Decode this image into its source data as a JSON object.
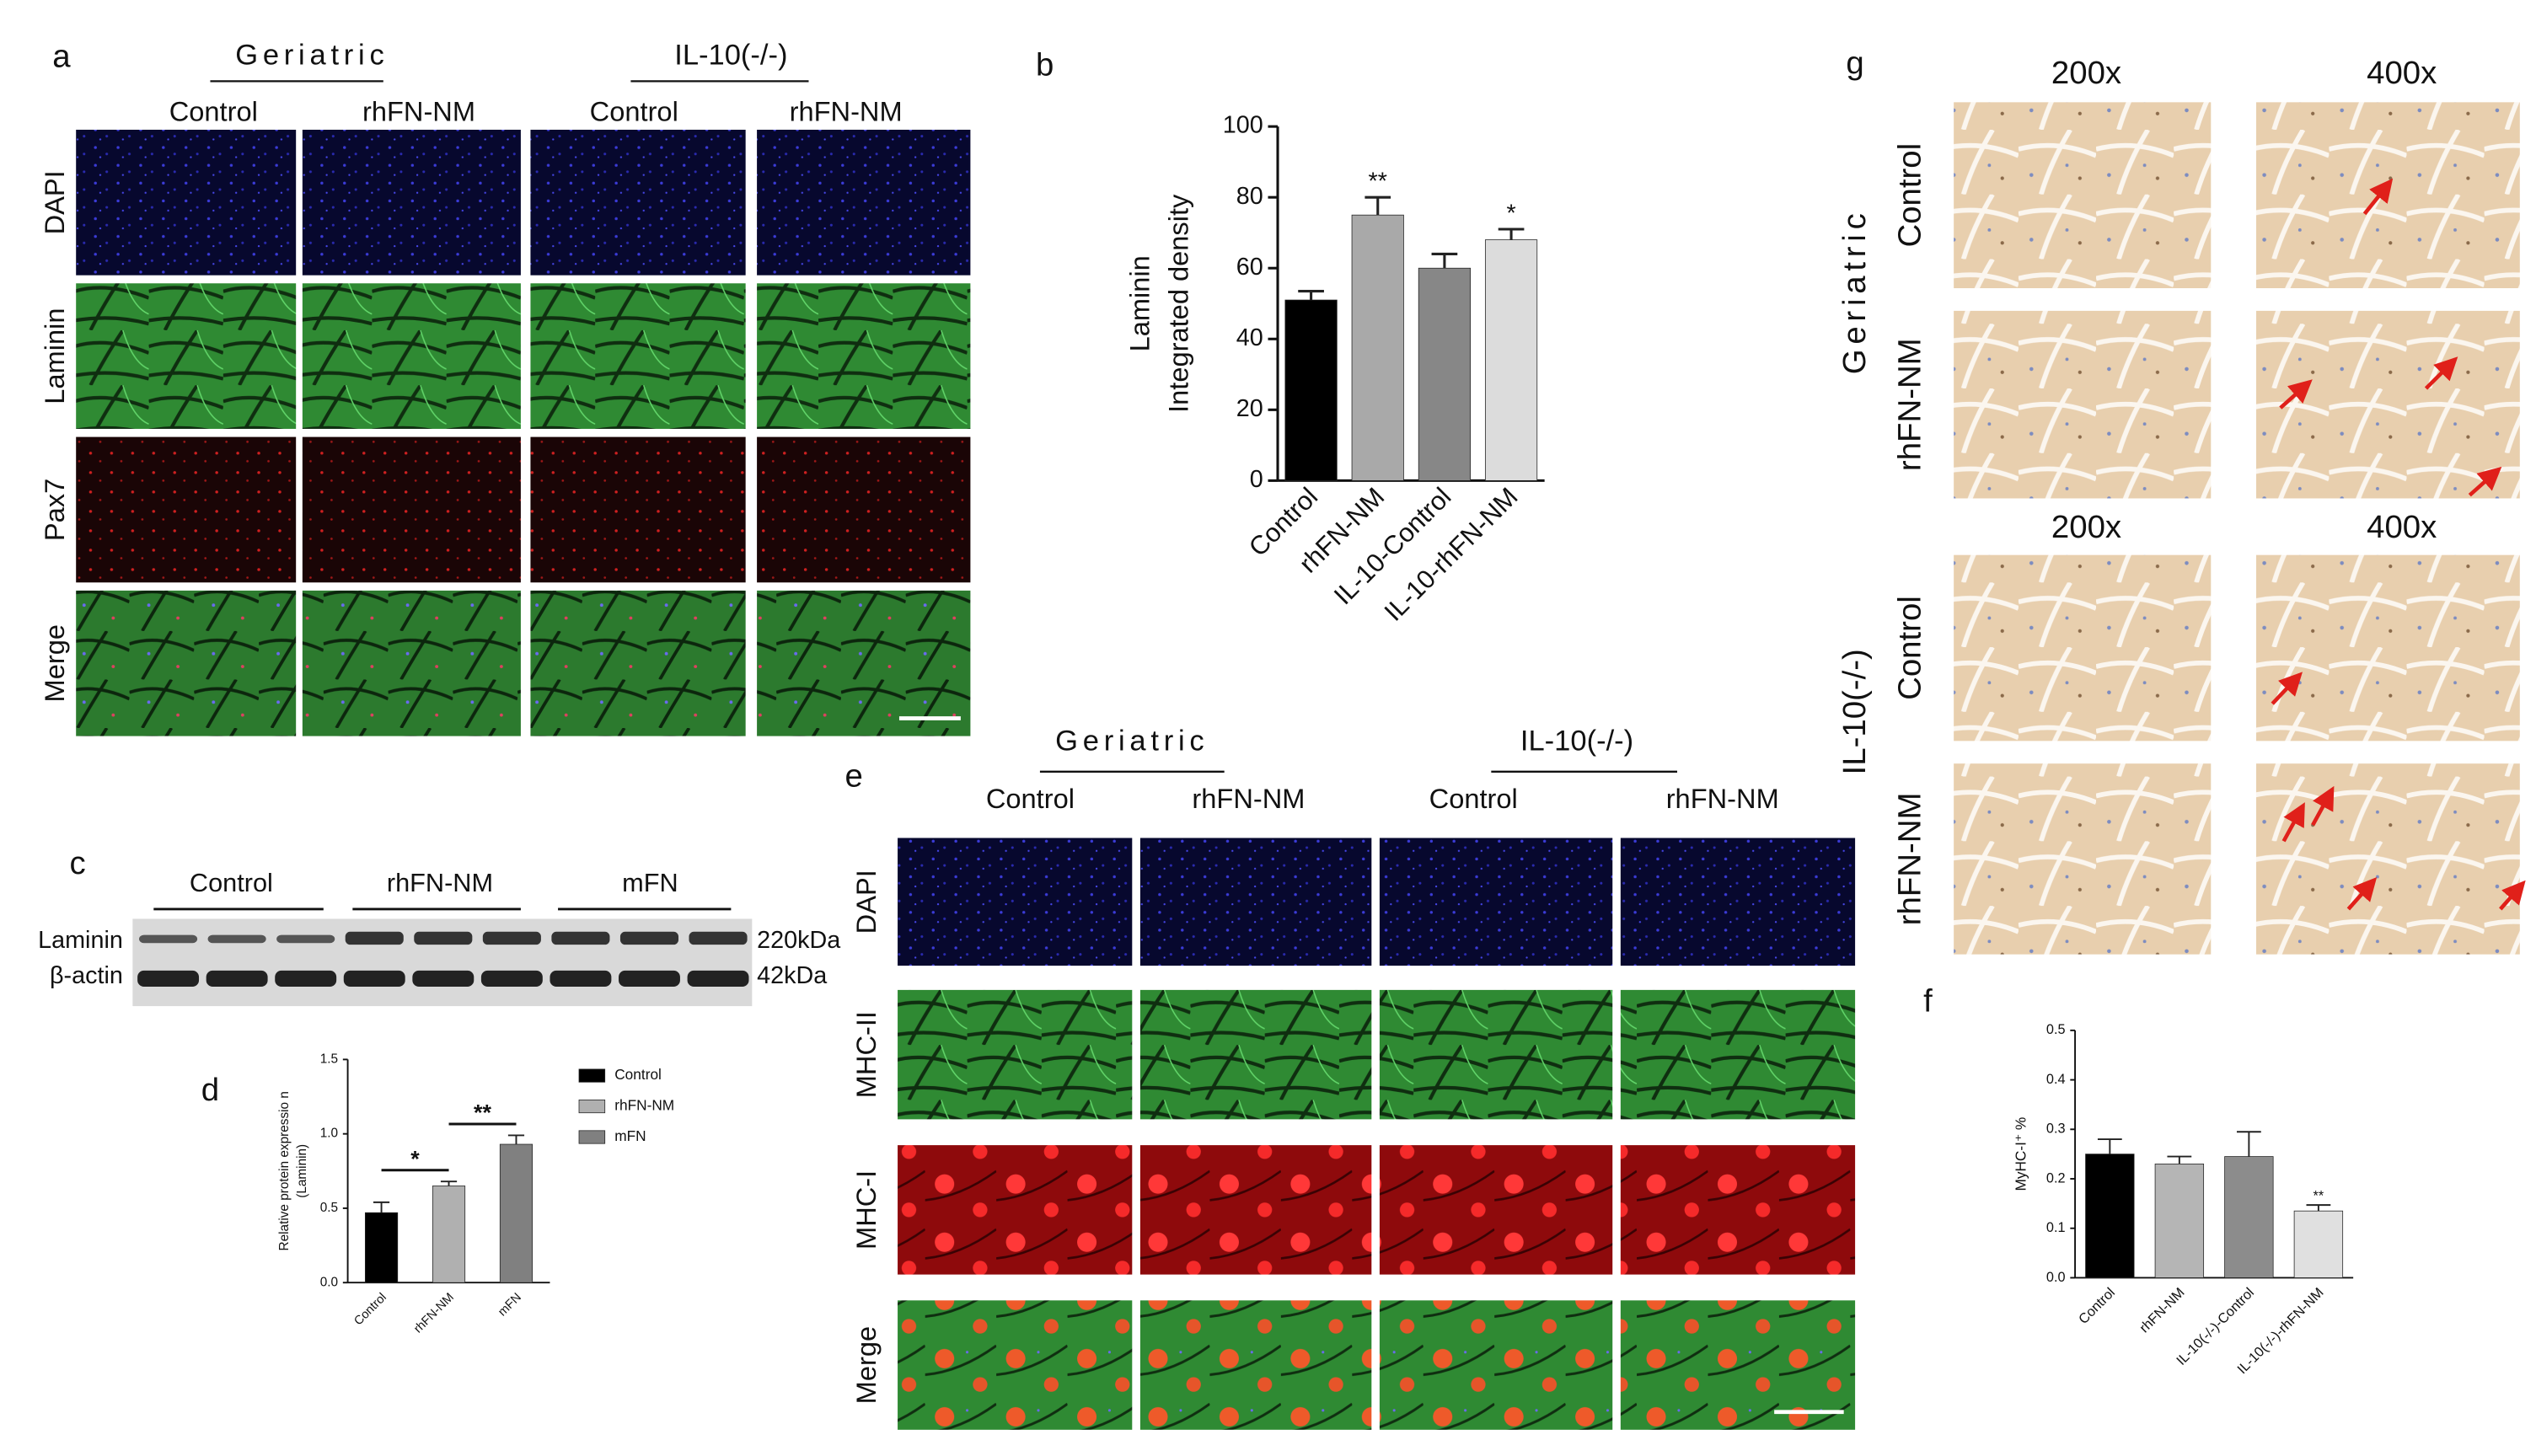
{
  "panel_labels": [
    "a",
    "b",
    "c",
    "d",
    "e",
    "f",
    "g"
  ],
  "panel_a": {
    "groups": [
      "Geriatric",
      "IL-10(-/-)"
    ],
    "columns": [
      "Control",
      "rhFN-NM",
      "Control",
      "rhFN-NM"
    ],
    "rows": [
      "DAPI",
      "Laminin",
      "Pax7",
      "Merge"
    ]
  },
  "panel_c": {
    "groups": [
      "Control",
      "rhFN-NM",
      "mFN"
    ],
    "bands": [
      "Laminin",
      "β-actin"
    ],
    "sizes": [
      "220kDa",
      "42kDa"
    ]
  },
  "panel_e": {
    "groups": [
      "Geriatric",
      "IL-10(-/-)"
    ],
    "columns": [
      "Control",
      "rhFN-NM",
      "Control",
      "rhFN-NM"
    ],
    "rows": [
      "DAPI",
      "MHC-II",
      "MHC-I",
      "Merge"
    ]
  },
  "panel_g": {
    "magnifications": [
      "200x",
      "400x",
      "200x",
      "400x"
    ],
    "groups": [
      "Geriatric",
      "IL-10(-/-)"
    ],
    "rows": [
      "Control",
      "rhFN-NM",
      "Control",
      "rhFN-NM"
    ]
  },
  "chart_data": [
    {
      "type": "bar",
      "ylabel": [
        "Laminin",
        "Integrated density"
      ],
      "categories": [
        "Control",
        "rhFN-NM",
        "IL-10-Control",
        "IL-10-rhFN-NM"
      ],
      "values": [
        51,
        75,
        60,
        68
      ],
      "errors": [
        2.5,
        5,
        4,
        3
      ],
      "colors": [
        "#000000",
        "#a9a9a9",
        "#878787",
        "#dcdcdc"
      ],
      "ylim": [
        0,
        100
      ],
      "yticks": [
        0,
        20,
        40,
        60,
        80,
        100
      ],
      "significance": [
        {
          "index": 1,
          "label": "**"
        },
        {
          "index": 3,
          "label": "*"
        }
      ]
    },
    {
      "type": "bar",
      "ylabel": [
        "Relative protein expressio n",
        "(Laminin)"
      ],
      "categories": [
        "Control",
        "rhFN-NM",
        "mFN"
      ],
      "values": [
        0.47,
        0.65,
        0.93
      ],
      "errors": [
        0.07,
        0.03,
        0.06
      ],
      "colors": [
        "#000000",
        "#b0b0b0",
        "#808080"
      ],
      "ylim": [
        0,
        1.5
      ],
      "yticks": [
        {
          "value": 0,
          "label": "0.0"
        },
        0.5,
        {
          "value": 1,
          "label": "1.0"
        },
        1.5
      ],
      "legend": "right",
      "brackets": [
        {
          "from": 0,
          "to": 1,
          "label": "*"
        },
        {
          "from": 1,
          "to": 2,
          "label": "**"
        }
      ]
    },
    {
      "type": "bar",
      "ylabel": [
        "MyHC-I⁺ %"
      ],
      "categories": [
        "Control",
        "rhFN-NM",
        "IL-10(-/-)-Control",
        "IL-10(-/-)-rhFN-NM"
      ],
      "values": [
        0.25,
        0.23,
        0.245,
        0.135
      ],
      "errors": [
        0.03,
        0.015,
        0.05,
        0.012
      ],
      "colors": [
        "#000000",
        "#b5b5b5",
        "#8c8c8c",
        "#e0e0e0"
      ],
      "ylim": [
        0,
        0.5
      ],
      "yticks": [
        {
          "value": 0,
          "label": "0.0"
        },
        0.1,
        0.2,
        0.3,
        0.4,
        0.5
      ],
      "significance": [
        {
          "index": 3,
          "label": "**"
        }
      ]
    }
  ]
}
